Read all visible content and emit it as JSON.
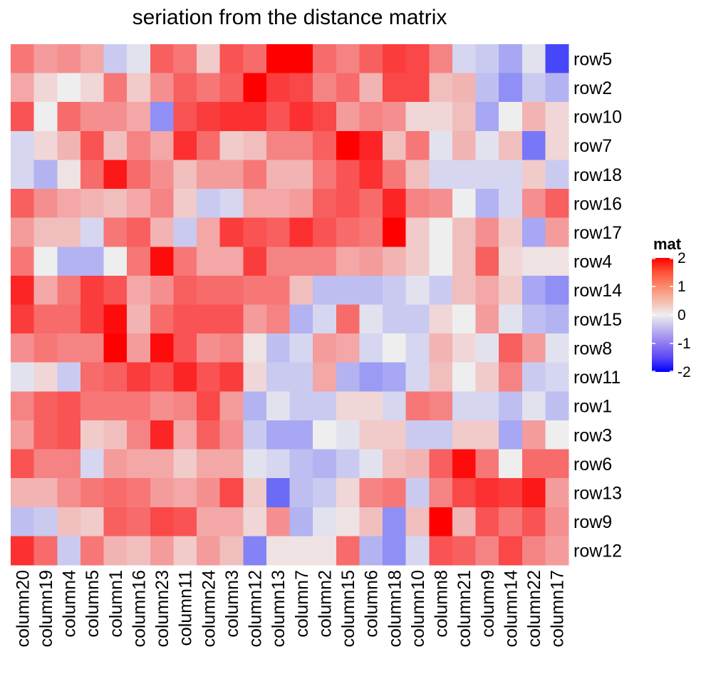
{
  "chart_data": {
    "type": "heatmap",
    "title": "seriation from the distance matrix",
    "rows": [
      "row5",
      "row2",
      "row10",
      "row7",
      "row18",
      "row16",
      "row17",
      "row4",
      "row14",
      "row15",
      "row8",
      "row11",
      "row1",
      "row3",
      "row6",
      "row13",
      "row9",
      "row12"
    ],
    "columns": [
      "column20",
      "column19",
      "column4",
      "column5",
      "column1",
      "column16",
      "column23",
      "column11",
      "column24",
      "column3",
      "column12",
      "column13",
      "column7",
      "column2",
      "column15",
      "column6",
      "column18",
      "column10",
      "column8",
      "column21",
      "column9",
      "column14",
      "column22",
      "column17"
    ],
    "values": [
      [
        1.0,
        0.7,
        0.8,
        0.6,
        -0.3,
        -0.1,
        1.2,
        1.0,
        0.3,
        1.3,
        1.1,
        2.0,
        2.0,
        1.1,
        0.9,
        1.2,
        1.5,
        1.4,
        0.9,
        -0.2,
        -0.3,
        -0.6,
        -0.1,
        -1.4
      ],
      [
        0.6,
        0.2,
        0.0,
        0.2,
        1.0,
        0.3,
        0.8,
        1.2,
        1.0,
        1.2,
        2.0,
        1.5,
        1.4,
        0.9,
        1.1,
        0.5,
        1.4,
        1.4,
        0.4,
        0.5,
        -0.4,
        -0.8,
        -0.3,
        -0.5
      ],
      [
        1.3,
        0.0,
        1.1,
        0.8,
        0.8,
        0.6,
        -0.8,
        1.3,
        1.5,
        1.6,
        1.6,
        1.3,
        1.6,
        1.4,
        0.7,
        0.9,
        0.8,
        0.2,
        0.2,
        0.4,
        -0.6,
        0.0,
        0.5,
        0.2
      ],
      [
        -0.2,
        0.2,
        0.5,
        1.3,
        0.4,
        0.9,
        0.6,
        1.6,
        1.1,
        0.3,
        0.4,
        0.9,
        0.9,
        1.2,
        2.0,
        1.7,
        0.4,
        1.0,
        -0.1,
        0.5,
        -0.1,
        0.4,
        -1.0,
        0.2
      ],
      [
        -0.2,
        -0.5,
        0.1,
        1.1,
        1.8,
        1.1,
        0.8,
        0.4,
        0.7,
        0.7,
        1.0,
        0.5,
        0.5,
        1.0,
        1.3,
        1.6,
        1.0,
        0.4,
        -0.2,
        -0.2,
        -0.2,
        -0.2,
        0.3,
        -0.3
      ],
      [
        1.2,
        0.8,
        0.6,
        0.5,
        0.4,
        0.6,
        0.9,
        0.3,
        -0.3,
        -0.2,
        0.6,
        0.6,
        0.7,
        1.2,
        1.3,
        1.1,
        1.7,
        0.9,
        0.8,
        0.0,
        -0.5,
        -0.2,
        0.8,
        1.2
      ],
      [
        0.7,
        0.4,
        0.4,
        -0.2,
        1.0,
        1.2,
        0.5,
        -0.3,
        0.6,
        1.5,
        1.3,
        1.2,
        1.6,
        1.3,
        1.1,
        1.0,
        2.0,
        0.3,
        0.0,
        0.4,
        0.8,
        0.3,
        -0.6,
        0.7
      ],
      [
        1.0,
        0.0,
        -0.5,
        -0.5,
        0.0,
        1.0,
        1.9,
        1.0,
        0.6,
        0.6,
        1.5,
        0.9,
        0.9,
        0.9,
        0.6,
        0.7,
        0.5,
        0.3,
        0.0,
        0.4,
        1.2,
        0.2,
        0.1,
        0.1
      ],
      [
        1.7,
        0.6,
        1.0,
        1.5,
        1.3,
        0.6,
        0.8,
        1.2,
        1.1,
        1.1,
        1.0,
        1.0,
        0.4,
        -0.4,
        -0.4,
        -0.4,
        -0.3,
        -0.1,
        -0.3,
        0.4,
        0.6,
        0.3,
        -0.6,
        -0.8
      ],
      [
        1.5,
        1.1,
        1.1,
        1.5,
        1.9,
        0.5,
        1.1,
        1.3,
        1.3,
        1.3,
        0.7,
        0.9,
        -0.5,
        -0.2,
        1.1,
        -0.1,
        -0.3,
        -0.3,
        0.2,
        0.0,
        0.7,
        -0.1,
        -0.4,
        -0.5
      ],
      [
        0.8,
        1.0,
        0.9,
        0.9,
        2.0,
        0.7,
        1.9,
        1.3,
        0.8,
        0.9,
        0.1,
        -0.4,
        -0.2,
        0.7,
        0.6,
        -0.2,
        0.0,
        -0.2,
        0.5,
        0.2,
        -0.1,
        1.2,
        0.7,
        -0.1
      ],
      [
        -0.1,
        0.2,
        -0.3,
        1.1,
        1.2,
        1.5,
        1.3,
        1.7,
        1.3,
        1.5,
        0.2,
        -0.3,
        -0.3,
        0.6,
        -0.5,
        -0.7,
        -0.6,
        -0.2,
        0.4,
        0.0,
        0.3,
        0.9,
        -0.3,
        -0.2
      ],
      [
        0.9,
        1.2,
        1.3,
        1.0,
        1.0,
        1.0,
        0.8,
        0.9,
        1.4,
        0.7,
        -0.5,
        -0.1,
        -0.3,
        -0.3,
        0.2,
        0.2,
        -0.2,
        1.0,
        0.9,
        -0.2,
        -0.2,
        -0.4,
        -0.1,
        -0.4
      ],
      [
        0.7,
        1.2,
        1.3,
        0.3,
        0.4,
        0.9,
        1.7,
        0.6,
        1.2,
        0.8,
        -0.3,
        -0.6,
        -0.6,
        0.0,
        -0.1,
        0.3,
        0.3,
        -0.3,
        -0.3,
        0.3,
        0.3,
        -0.6,
        0.7,
        0.0
      ],
      [
        1.3,
        0.9,
        0.9,
        -0.2,
        0.7,
        0.6,
        0.6,
        0.3,
        0.6,
        0.6,
        -0.1,
        -0.2,
        -0.4,
        -0.5,
        -0.3,
        -0.1,
        0.4,
        0.5,
        1.2,
        1.9,
        1.0,
        0.0,
        1.1,
        1.1
      ],
      [
        0.5,
        0.5,
        0.8,
        1.0,
        1.1,
        1.0,
        0.7,
        0.6,
        0.8,
        1.4,
        0.3,
        -1.1,
        -0.4,
        -0.3,
        0.2,
        0.9,
        1.0,
        -0.3,
        0.9,
        1.4,
        1.6,
        1.5,
        1.8,
        0.7
      ],
      [
        -0.4,
        -0.3,
        0.4,
        0.3,
        1.2,
        1.1,
        1.4,
        1.3,
        0.6,
        0.6,
        0.2,
        0.8,
        -0.5,
        -0.1,
        0.1,
        0.4,
        -0.8,
        0.4,
        2.0,
        0.5,
        1.3,
        1.0,
        1.3,
        0.8
      ],
      [
        1.6,
        1.1,
        -0.3,
        1.0,
        0.5,
        0.4,
        0.7,
        0.3,
        0.7,
        0.4,
        -0.9,
        0.1,
        0.1,
        0.1,
        1.1,
        -0.5,
        -0.8,
        -0.2,
        1.3,
        1.2,
        0.9,
        1.4,
        0.9,
        0.7
      ]
    ],
    "color_scale": {
      "low": "#0000FF",
      "mid": "#EEEEEE",
      "high": "#FF0000",
      "domain": [
        -2,
        0,
        2
      ]
    },
    "legend": {
      "title": "mat",
      "ticks": [
        "2",
        "1",
        "0",
        "-1",
        "-2"
      ],
      "tick_values": [
        2,
        1,
        0,
        -1,
        -2
      ],
      "position": "right"
    },
    "grid": false
  }
}
